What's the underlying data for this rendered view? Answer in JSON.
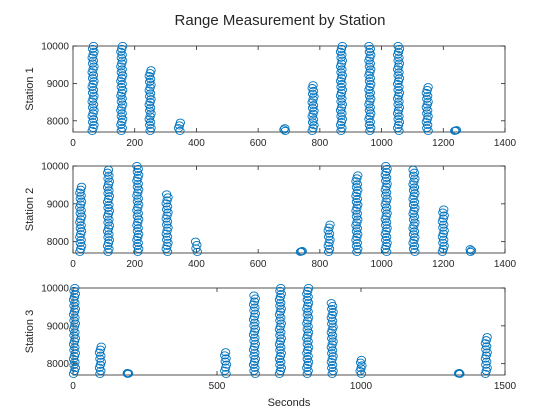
{
  "figure": {
    "title": "Range Measurement by Station"
  },
  "style": {
    "marker_color": "#0072BD"
  },
  "chart_data": [
    {
      "type": "scatter",
      "marker": "circle-open",
      "ylabel": "Station 1",
      "xlabel": "",
      "xlim": [
        0,
        1400
      ],
      "ylim": [
        7700,
        10000
      ],
      "xticks": [
        "0",
        "200",
        "400",
        "600",
        "800",
        "1000",
        "1200",
        "1400"
      ],
      "yticks": [
        "8000",
        "9000",
        "10000"
      ],
      "bursts": [
        {
          "x": 65,
          "ymax": 10000
        },
        {
          "x": 158,
          "ymax": 10000
        },
        {
          "x": 250,
          "ymax": 9350
        },
        {
          "x": 345,
          "ymax": 7950
        },
        {
          "x": 685,
          "ymax": 7800
        },
        {
          "x": 778,
          "ymax": 8950
        },
        {
          "x": 870,
          "ymax": 10000
        },
        {
          "x": 962,
          "ymax": 10000
        },
        {
          "x": 1055,
          "ymax": 10000
        },
        {
          "x": 1148,
          "ymax": 8900
        },
        {
          "x": 1240,
          "ymax": 7750
        }
      ]
    },
    {
      "type": "scatter",
      "marker": "circle-open",
      "ylabel": "Station 2",
      "xlabel": "",
      "xlim": [
        0,
        1400
      ],
      "ylim": [
        7700,
        10000
      ],
      "xticks": [
        "0",
        "200",
        "400",
        "600",
        "800",
        "1000",
        "1200",
        "1400"
      ],
      "yticks": [
        "8000",
        "9000",
        "10000"
      ],
      "bursts": [
        {
          "x": 25,
          "ymax": 9450
        },
        {
          "x": 115,
          "ymax": 9900
        },
        {
          "x": 210,
          "ymax": 10000
        },
        {
          "x": 305,
          "ymax": 9250
        },
        {
          "x": 400,
          "ymax": 8000
        },
        {
          "x": 740,
          "ymax": 7750
        },
        {
          "x": 830,
          "ymax": 8450
        },
        {
          "x": 920,
          "ymax": 9750
        },
        {
          "x": 1015,
          "ymax": 10000
        },
        {
          "x": 1105,
          "ymax": 9900
        },
        {
          "x": 1200,
          "ymax": 8850
        },
        {
          "x": 1290,
          "ymax": 7800
        }
      ]
    },
    {
      "type": "scatter",
      "marker": "circle-open",
      "ylabel": "Station 3",
      "xlabel": "Seconds",
      "xlim": [
        0,
        1500
      ],
      "ylim": [
        7700,
        10000
      ],
      "xticks": [
        "0",
        "500",
        "1000",
        "1500"
      ],
      "yticks": [
        "8000",
        "9000",
        "10000"
      ],
      "bursts": [
        {
          "x": 5,
          "ymax": 10000
        },
        {
          "x": 95,
          "ymax": 8450
        },
        {
          "x": 190,
          "ymax": 7750
        },
        {
          "x": 530,
          "ymax": 8300
        },
        {
          "x": 630,
          "ymax": 9800
        },
        {
          "x": 720,
          "ymax": 10000
        },
        {
          "x": 815,
          "ymax": 10000
        },
        {
          "x": 900,
          "ymax": 9600
        },
        {
          "x": 1000,
          "ymax": 8100
        },
        {
          "x": 1340,
          "ymax": 7750
        },
        {
          "x": 1435,
          "ymax": 8700
        }
      ]
    }
  ]
}
